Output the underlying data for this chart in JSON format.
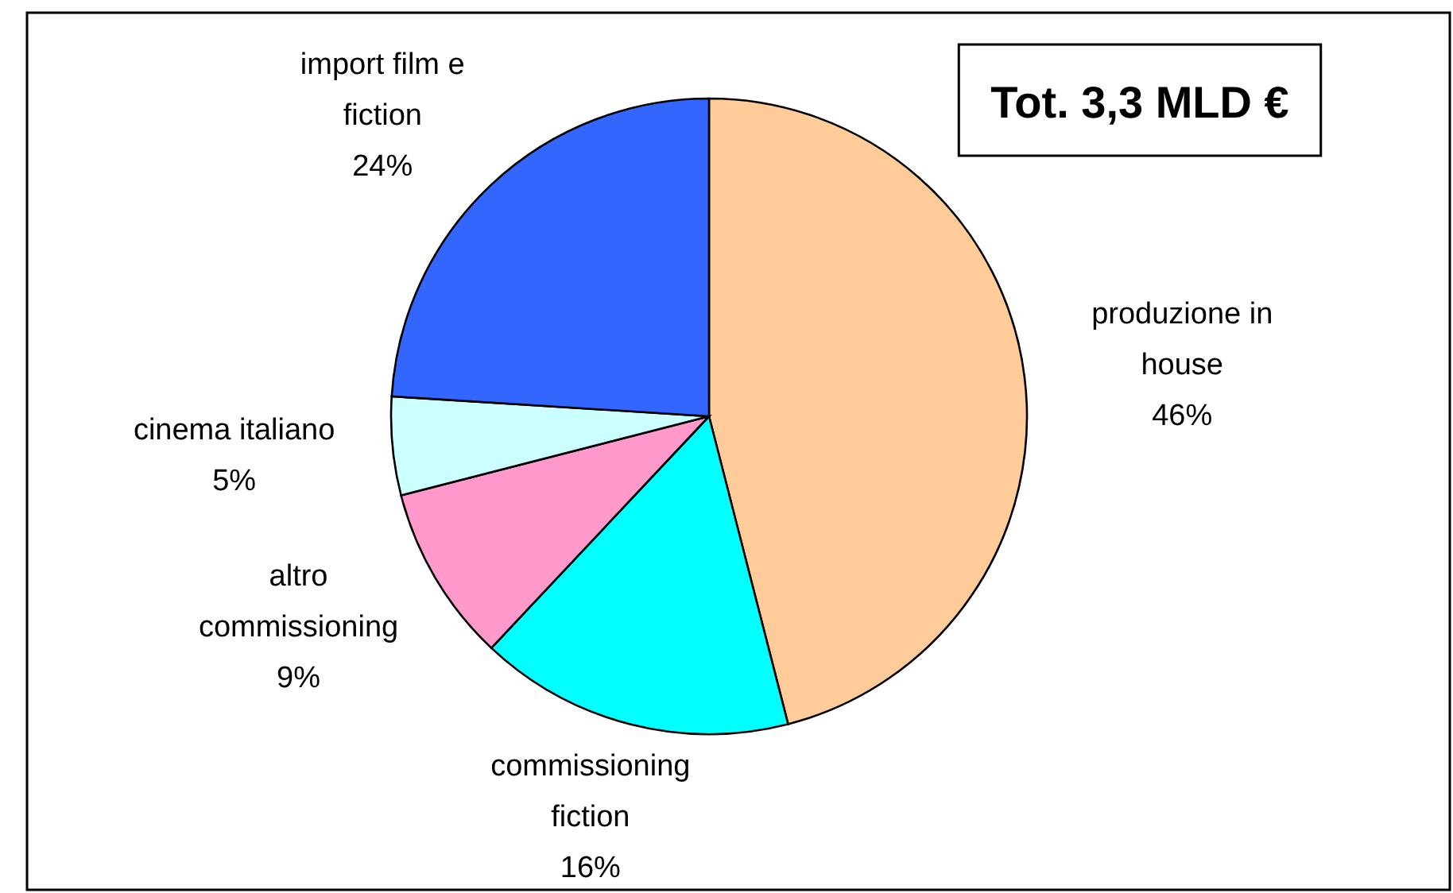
{
  "chart_data": {
    "type": "pie",
    "categories": [
      "produzione in house",
      "commissioning fiction",
      "altro commissioning",
      "cinema italiano",
      "import film e fiction"
    ],
    "values": [
      46,
      16,
      9,
      5,
      24
    ],
    "colors": [
      "#ffcc99",
      "#00ffff",
      "#ff99cc",
      "#ccffff",
      "#3366ff"
    ],
    "value_labels": [
      "46%",
      "16%",
      "9%",
      "5%",
      "24%"
    ],
    "annotations": [
      "Tot. 3,3 MLD €"
    ]
  }
}
